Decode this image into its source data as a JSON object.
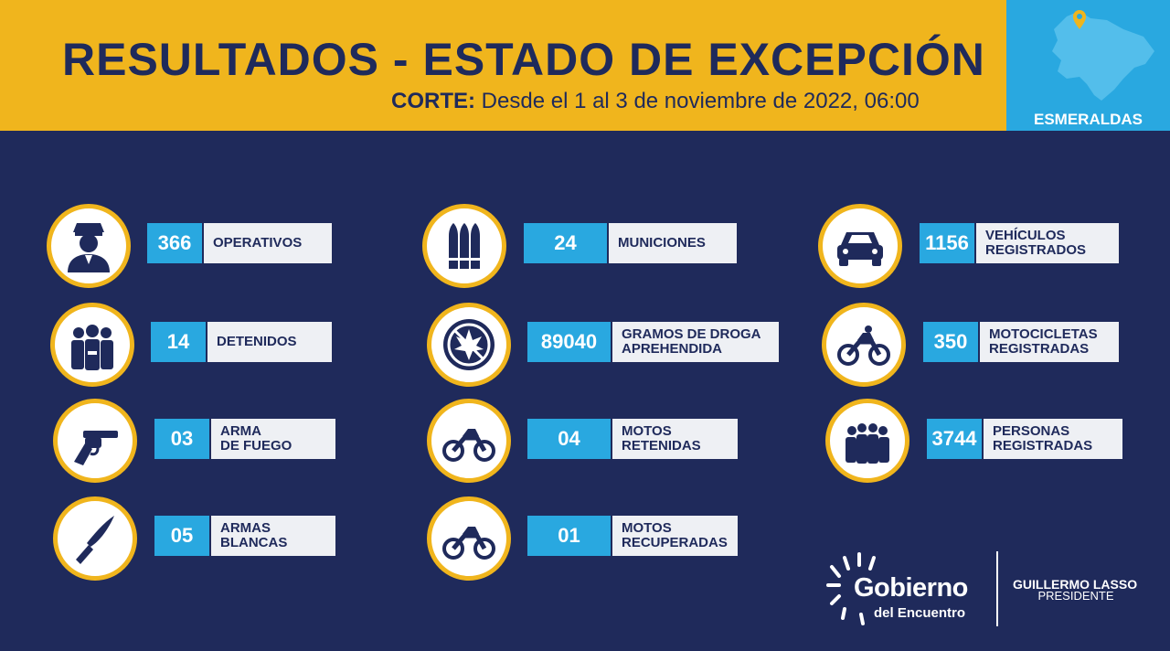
{
  "header": {
    "title": "RESULTADOS - ESTADO DE EXCEPCIÓN",
    "corte_label": "CORTE:",
    "corte_text": "Desde el 1 al 3 de noviembre de 2022, 06:00"
  },
  "map": {
    "label": "ESMERALDAS",
    "icon": "map-pin-icon"
  },
  "stats": [
    {
      "value": "366",
      "label": "OPERATIVOS",
      "icon": "police-officer-icon"
    },
    {
      "value": "14",
      "label": "DETENIDOS",
      "icon": "detainees-icon"
    },
    {
      "value": "03",
      "label": "ARMA\nDE FUEGO",
      "icon": "revolver-icon"
    },
    {
      "value": "05",
      "label": "ARMAS\nBLANCAS",
      "icon": "knife-icon"
    },
    {
      "value": "24",
      "label": "MUNICIONES",
      "icon": "bullets-icon"
    },
    {
      "value": "89040",
      "label": "GRAMOS DE DROGA\nAPREHENDIDA",
      "icon": "no-drugs-icon"
    },
    {
      "value": "04",
      "label": "MOTOS\nRETENIDAS",
      "icon": "motorcycle-icon"
    },
    {
      "value": "01",
      "label": "MOTOS\nRECUPERADAS",
      "icon": "motorcycle-icon"
    },
    {
      "value": "1156",
      "label": "VEHÍCULOS\nREGISTRADOS",
      "icon": "car-icon"
    },
    {
      "value": "350",
      "label": "MOTOCICLETAS\nREGISTRADAS",
      "icon": "motorcycle-icon"
    },
    {
      "value": "3744",
      "label": "PERSONAS\nREGISTRADAS",
      "icon": "crowd-icon"
    }
  ],
  "footer": {
    "logo_title": "Gobierno",
    "logo_subtitle": "del Encuentro",
    "president_name": "GUILLERMO LASSO",
    "president_role": "PRESIDENTE"
  },
  "colors": {
    "background": "#1f2a5b",
    "header": "#f0b51d",
    "accent": "#29a8e0",
    "label_bg": "#eef0f4"
  }
}
